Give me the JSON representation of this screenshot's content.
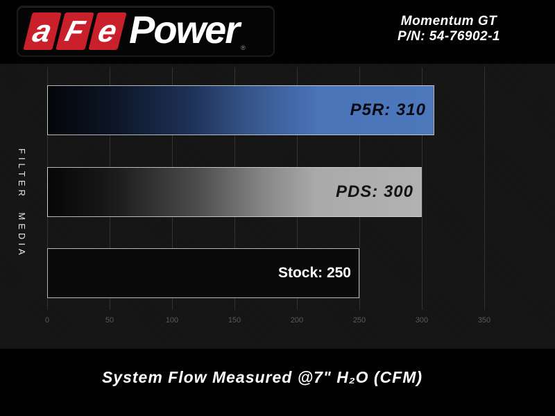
{
  "header": {
    "logo": {
      "letters": [
        "a",
        "F",
        "e"
      ],
      "power": "Power",
      "registered": "®"
    },
    "product": {
      "line1": "Momentum GT",
      "line2": "P/N: 54-76902-1"
    }
  },
  "colors": {
    "brand_red": "#c9202b",
    "bar_blue": "#4a74b8",
    "bar_silver": "#b2b2b2",
    "bar_black": "#0a0a0a",
    "chart_background": "#151515",
    "header_background": "#020202",
    "gridline": "#323232",
    "tick_text": "#5a5a5a"
  },
  "chart_data": {
    "type": "bar",
    "orientation": "horizontal",
    "title": "",
    "xlabel": "System Flow Measured @7\" H₂O (CFM)",
    "ylabel": "FILTER MEDIA",
    "xlim": [
      0,
      400
    ],
    "ticks": [
      0,
      50,
      100,
      150,
      200,
      250,
      300,
      350
    ],
    "grid": true,
    "legend": "none",
    "categories": [
      "P5R",
      "PDS",
      "Stock"
    ],
    "values": [
      310,
      300,
      250
    ],
    "series": [
      {
        "name": "P5R",
        "value": 310,
        "label": "P5R: 310",
        "fill": "blue-gradient",
        "label_color": "#0a0a12",
        "label_italic": true
      },
      {
        "name": "PDS",
        "value": 300,
        "label": "PDS: 300",
        "fill": "silver-gradient",
        "label_color": "#141414",
        "label_italic": true
      },
      {
        "name": "Stock",
        "value": 250,
        "label": "Stock: 250",
        "fill": "black",
        "label_color": "#ffffff",
        "label_italic": false
      }
    ]
  },
  "caption": "System Flow Measured @7\" H₂O (CFM)"
}
